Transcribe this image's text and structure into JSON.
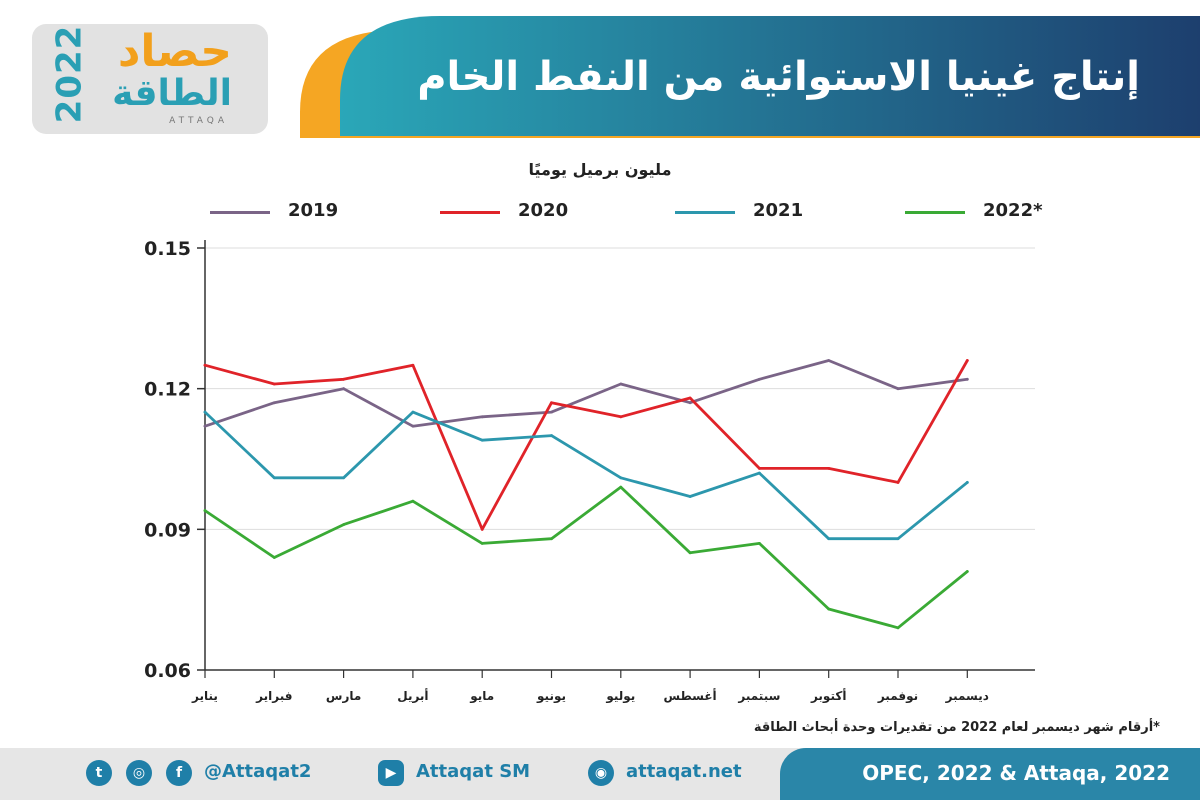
{
  "header": {
    "title": "إنتاج غينيا الاستوائية من النفط الخام",
    "logo": {
      "main": "حصاد",
      "sub": "الطاقة",
      "year": "2022",
      "latin": "ATTAQA"
    }
  },
  "chart_data": {
    "type": "line",
    "title": "إنتاج غينيا الاستوائية من النفط الخام",
    "ylabel": "مليون برميل يوميًا",
    "categories": [
      "يناير",
      "فبراير",
      "مارس",
      "أبريل",
      "مايو",
      "يونيو",
      "يوليو",
      "أغسطس",
      "سبتمبر",
      "أكتوبر",
      "نوفمبر",
      "ديسمبر"
    ],
    "ylim": [
      0.06,
      0.15
    ],
    "yticks": [
      "0.06",
      "0.09",
      "0.12",
      "0.15"
    ],
    "grid": true,
    "legend_position": "top",
    "series": [
      {
        "name": "2019",
        "color": "#7a6487",
        "values": [
          0.112,
          0.117,
          0.12,
          0.112,
          0.114,
          0.115,
          0.121,
          0.117,
          0.122,
          0.126,
          0.12,
          0.122
        ]
      },
      {
        "name": "2020",
        "color": "#e02329",
        "values": [
          0.125,
          0.121,
          0.122,
          0.125,
          0.09,
          0.117,
          0.114,
          0.118,
          0.103,
          0.103,
          0.1,
          0.126
        ]
      },
      {
        "name": "2021",
        "color": "#2c97ad",
        "values": [
          0.115,
          0.101,
          0.101,
          0.115,
          0.109,
          0.11,
          0.101,
          0.097,
          0.102,
          0.088,
          0.088,
          0.1
        ]
      },
      {
        "name": "2022*",
        "color": "#3aaa35",
        "values": [
          0.094,
          0.084,
          0.091,
          0.096,
          0.087,
          0.088,
          0.099,
          0.085,
          0.087,
          0.073,
          0.069,
          0.081
        ]
      }
    ]
  },
  "footnote": "*أرقام شهر ديسمبر لعام 2022 من تقديرات وحدة أبحاث الطاقة",
  "footer": {
    "social_handle": "@Attaqat2",
    "youtube": "Attaqat SM",
    "website": "attaqat.net",
    "source": "OPEC, 2022 & Attaqa, 2022",
    "icons": [
      "twitter-icon",
      "instagram-icon",
      "facebook-icon",
      "youtube-icon",
      "globe-icon"
    ]
  }
}
